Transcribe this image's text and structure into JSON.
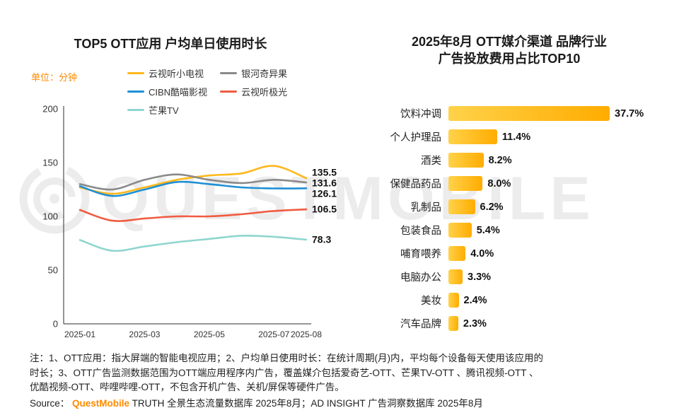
{
  "colors": {
    "accent": "#FF8A00",
    "watermark": "#ECECEC"
  },
  "watermark": {
    "text": "QUESTMOBILE"
  },
  "left_chart": {
    "title": "TOP5 OTT应用 户均单日使用时长",
    "unit_label": "单位：分钟"
  },
  "right_chart": {
    "title_line1": "2025年8月 OTT媒介渠道 品牌行业",
    "title_line2": "广告投放费用占比TOP10"
  },
  "notes": {
    "lines": [
      "注：1、OTT应用：指大屏端的智能电视应用；2、户均单日使用时长：在统计周期(月)内，平均每个设备每天使用该应用的",
      "时长；3、OTT广告监测数据范围为OTT端应用程序内广告，覆盖媒介包括爱奇艺-OTT、芒果TV-OTT 、腾讯视频-OTT 、",
      "优酷视频-OTT、哔哩哔哩-OTT，不包含开机广告、关机/屏保等硬件广告。"
    ]
  },
  "source": {
    "prefix": "Source：",
    "brand": "QuestMobile",
    "suffix": " TRUTH 全景生态流量数据库 2025年8月；AD INSIGHT 广告洞察数据库 2025年8月"
  },
  "chart_data": [
    {
      "type": "line",
      "title": "TOP5 OTT应用 户均单日使用时长",
      "ylabel": "单位：分钟",
      "x": [
        "2025-01",
        "2025-02",
        "2025-03",
        "2025-04",
        "2025-05",
        "2025-06",
        "2025-07",
        "2025-08"
      ],
      "x_tick_labels": [
        "2025-01",
        "2025-03",
        "2025-05",
        "2025-07",
        "2025-08"
      ],
      "ylim": [
        0,
        200
      ],
      "yticks": [
        0,
        50,
        100,
        150,
        200
      ],
      "grid": false,
      "legend_position": "top",
      "series": [
        {
          "name": "云视听小电视",
          "color": "#FFB81C",
          "values": [
            127,
            121,
            127,
            134,
            138,
            140,
            147,
            135.5
          ],
          "end_label": "135.5"
        },
        {
          "name": "银河奇异果",
          "color": "#8A8A8A",
          "values": [
            130,
            125,
            134,
            139,
            134,
            131,
            134,
            131.6
          ],
          "end_label": "131.6"
        },
        {
          "name": "CIBN酷喵影视",
          "color": "#1E8FD5",
          "values": [
            128,
            119,
            125,
            132,
            130,
            127,
            126,
            126.1
          ],
          "end_label": "126.1"
        },
        {
          "name": "云视听极光",
          "color": "#F05B40",
          "values": [
            106,
            96,
            98,
            100,
            100,
            102,
            105,
            106.5
          ],
          "end_label": "106.5"
        },
        {
          "name": "芒果TV",
          "color": "#8FD6CF",
          "values": [
            78,
            68,
            72,
            76,
            79,
            82,
            81,
            78.3
          ],
          "end_label": "78.3"
        }
      ]
    },
    {
      "type": "bar",
      "orientation": "horizontal",
      "title": "2025年8月 OTT媒介渠道 品牌行业广告投放费用占比TOP10",
      "categories": [
        "饮料冲调",
        "个人护理品",
        "酒类",
        "保健品药品",
        "乳制品",
        "包装食品",
        "哺育喂养",
        "电脑办公",
        "美妆",
        "汽车品牌"
      ],
      "values": [
        37.7,
        11.4,
        8.2,
        8.0,
        6.2,
        5.4,
        4.0,
        3.3,
        2.4,
        2.3
      ],
      "value_labels": [
        "37.7%",
        "11.4%",
        "8.2%",
        "8.0%",
        "6.2%",
        "5.4%",
        "4.0%",
        "3.3%",
        "2.4%",
        "2.3%"
      ],
      "xlim": [
        0,
        40
      ],
      "bar_colors": [
        "#FFD24A",
        "#FFAC00"
      ]
    }
  ]
}
